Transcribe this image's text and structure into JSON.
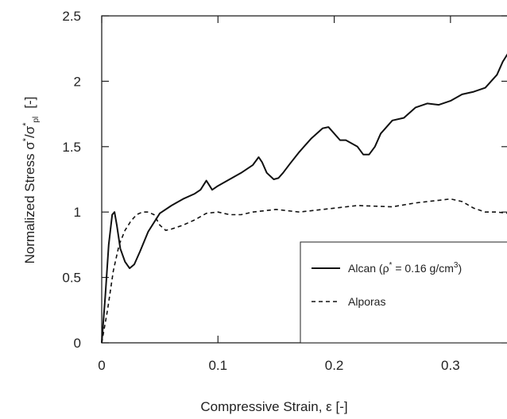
{
  "chart_data": {
    "type": "line",
    "xlabel": "Compressive Strain, ε  [-]",
    "ylabel": "Normalized Stress σ*/σ*pl  [-]",
    "ylabel_parts": {
      "base": "Normalized Stress σ",
      "sup1": "*",
      "mid": "/σ",
      "sup2": "*",
      "sub": "pl",
      "unit": "[-]"
    },
    "xlim": [
      0,
      0.35
    ],
    "ylim": [
      0,
      2.5
    ],
    "xticks": [
      0,
      0.1,
      0.2,
      0.3
    ],
    "xtick_labels": [
      "0",
      "0.1",
      "0.2",
      "0.3"
    ],
    "yticks": [
      0,
      0.5,
      1,
      1.5,
      2,
      2.5
    ],
    "ytick_labels": [
      "0",
      "0.5",
      "1",
      "1.5",
      "2",
      "2.5"
    ],
    "grid": false,
    "legend_placement": "bottom-right",
    "series": [
      {
        "name": "Alcan (ρ* = 0.16 g/cm³)",
        "label_parts": {
          "pre": "Alcan (ρ",
          "sup": "*",
          "mid": " = 0.16 g/cm",
          "sup2": "3",
          "post": ")"
        },
        "style": "solid",
        "x": [
          0,
          0.003,
          0.006,
          0.009,
          0.011,
          0.013,
          0.016,
          0.02,
          0.024,
          0.028,
          0.033,
          0.04,
          0.05,
          0.06,
          0.07,
          0.08,
          0.085,
          0.09,
          0.095,
          0.1,
          0.11,
          0.12,
          0.13,
          0.135,
          0.138,
          0.142,
          0.148,
          0.152,
          0.156,
          0.162,
          0.17,
          0.18,
          0.19,
          0.195,
          0.2,
          0.205,
          0.21,
          0.22,
          0.225,
          0.23,
          0.235,
          0.24,
          0.25,
          0.26,
          0.27,
          0.28,
          0.29,
          0.3,
          0.31,
          0.32,
          0.33,
          0.34,
          0.345,
          0.35
        ],
        "y": [
          0,
          0.35,
          0.75,
          0.98,
          1.0,
          0.9,
          0.72,
          0.62,
          0.57,
          0.6,
          0.7,
          0.85,
          0.99,
          1.05,
          1.1,
          1.14,
          1.17,
          1.24,
          1.17,
          1.2,
          1.25,
          1.3,
          1.36,
          1.42,
          1.38,
          1.3,
          1.25,
          1.26,
          1.3,
          1.37,
          1.46,
          1.56,
          1.64,
          1.65,
          1.6,
          1.55,
          1.55,
          1.5,
          1.44,
          1.44,
          1.5,
          1.6,
          1.7,
          1.72,
          1.8,
          1.83,
          1.82,
          1.85,
          1.9,
          1.92,
          1.95,
          2.05,
          2.15,
          2.22
        ]
      },
      {
        "name": "Alporas",
        "style": "dashed",
        "x": [
          0,
          0.005,
          0.01,
          0.015,
          0.02,
          0.025,
          0.03,
          0.035,
          0.04,
          0.045,
          0.05,
          0.055,
          0.06,
          0.07,
          0.08,
          0.09,
          0.1,
          0.11,
          0.12,
          0.13,
          0.15,
          0.17,
          0.2,
          0.22,
          0.25,
          0.27,
          0.29,
          0.3,
          0.31,
          0.32,
          0.33,
          0.34,
          0.35
        ],
        "y": [
          0,
          0.25,
          0.55,
          0.75,
          0.86,
          0.93,
          0.98,
          1.0,
          1.0,
          0.98,
          0.9,
          0.86,
          0.87,
          0.9,
          0.94,
          0.99,
          1.0,
          0.98,
          0.98,
          1.0,
          1.02,
          1.0,
          1.03,
          1.05,
          1.04,
          1.07,
          1.09,
          1.1,
          1.08,
          1.03,
          1.0,
          1.0,
          0.99
        ]
      }
    ]
  }
}
